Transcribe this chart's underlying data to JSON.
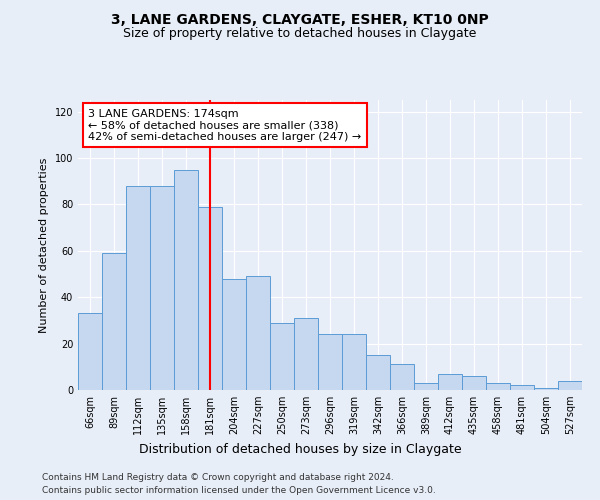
{
  "title": "3, LANE GARDENS, CLAYGATE, ESHER, KT10 0NP",
  "subtitle": "Size of property relative to detached houses in Claygate",
  "xlabel": "Distribution of detached houses by size in Claygate",
  "ylabel": "Number of detached properties",
  "categories": [
    "66sqm",
    "89sqm",
    "112sqm",
    "135sqm",
    "158sqm",
    "181sqm",
    "204sqm",
    "227sqm",
    "250sqm",
    "273sqm",
    "296sqm",
    "319sqm",
    "342sqm",
    "366sqm",
    "389sqm",
    "412sqm",
    "435sqm",
    "458sqm",
    "481sqm",
    "504sqm",
    "527sqm"
  ],
  "values": [
    33,
    59,
    88,
    88,
    95,
    79,
    48,
    49,
    29,
    31,
    24,
    24,
    15,
    11,
    3,
    7,
    6,
    3,
    2,
    1,
    4
  ],
  "bar_color": "#c5d8f0",
  "bar_edge_color": "#5b9bd5",
  "vline_x": 5,
  "vline_color": "red",
  "annotation_text": "3 LANE GARDENS: 174sqm\n← 58% of detached houses are smaller (338)\n42% of semi-detached houses are larger (247) →",
  "annotation_box_color": "white",
  "annotation_box_edge_color": "red",
  "ylim": [
    0,
    125
  ],
  "yticks": [
    0,
    20,
    40,
    60,
    80,
    100,
    120
  ],
  "footer_line1": "Contains HM Land Registry data © Crown copyright and database right 2024.",
  "footer_line2": "Contains public sector information licensed under the Open Government Licence v3.0.",
  "background_color": "#e8eef8",
  "title_fontsize": 10,
  "subtitle_fontsize": 9,
  "xlabel_fontsize": 9,
  "ylabel_fontsize": 8,
  "tick_fontsize": 7,
  "annotation_fontsize": 8,
  "footer_fontsize": 6.5
}
